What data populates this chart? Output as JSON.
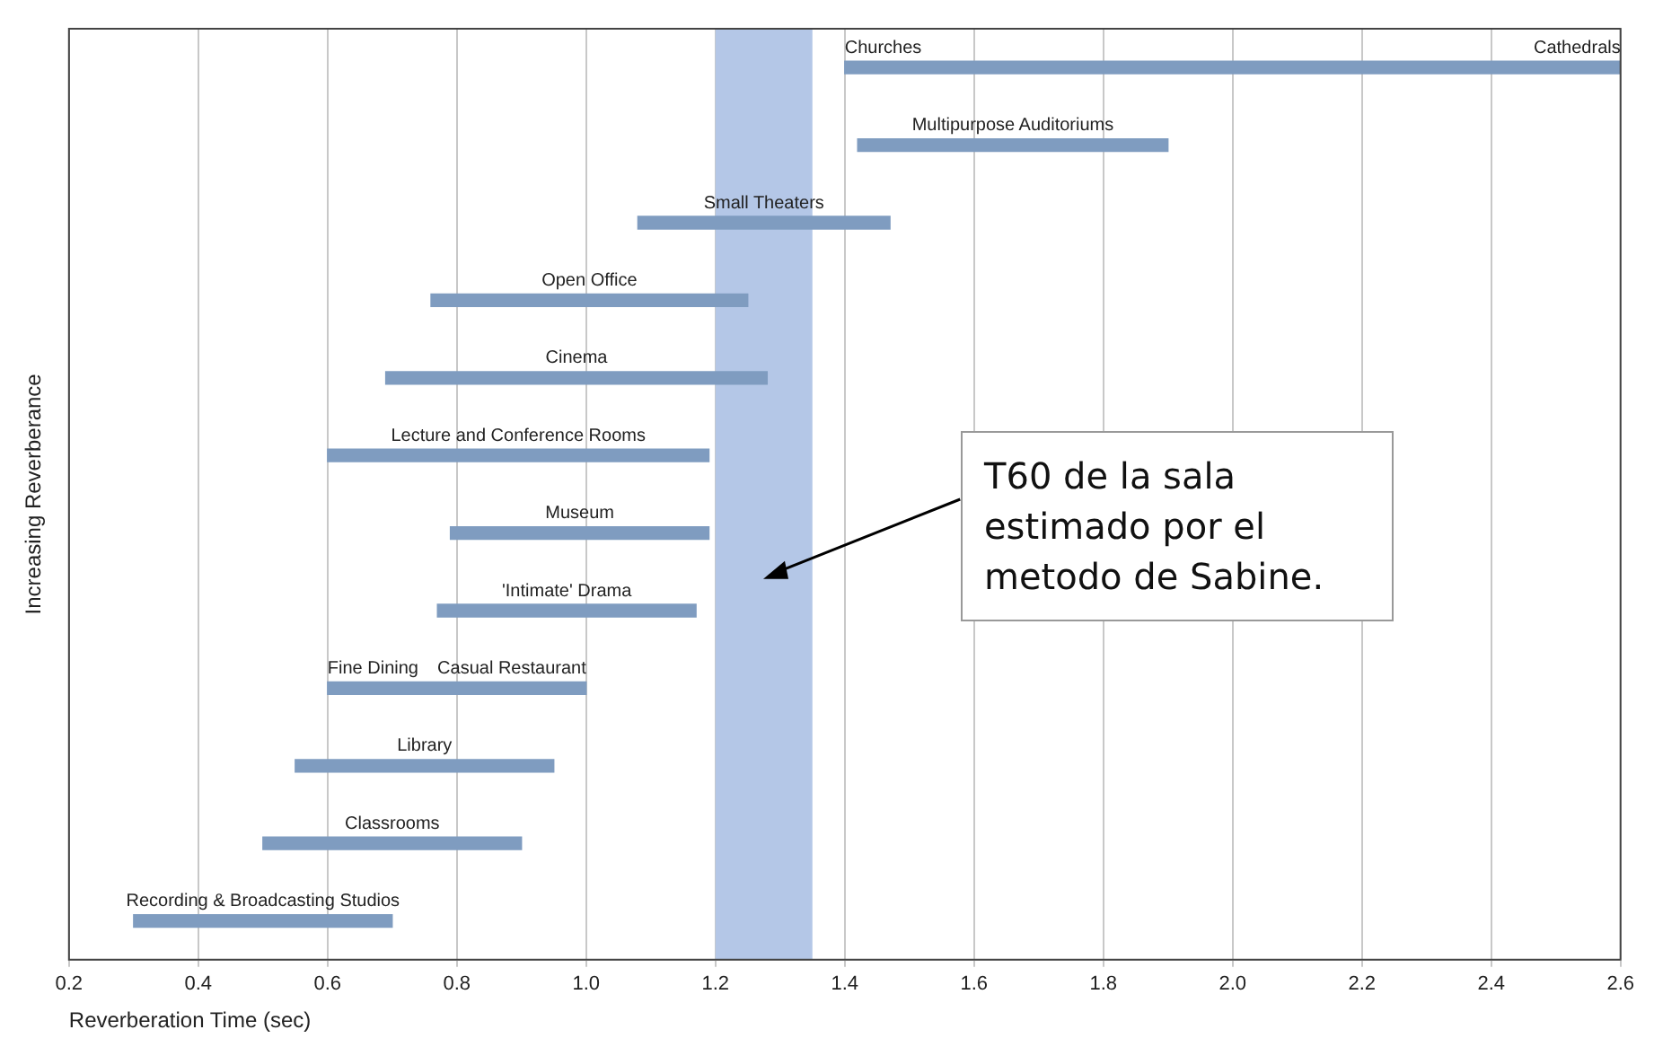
{
  "chart_data": {
    "type": "bar",
    "orientation": "horizontal",
    "xlabel": "Reverberation Time (sec)",
    "ylabel": "Increasing Reverberance",
    "categories": [
      "Churches",
      "Multipurpose Auditoriums",
      "Small Theaters",
      "Open Office",
      "Cinema",
      "Lecture and Conference Rooms",
      "Museum",
      "'Intimate' Drama",
      "Fine Dining",
      "Library",
      "Classrooms",
      "Recording & Broadcasting Studios"
    ],
    "base": [
      1.4,
      1.42,
      1.08,
      0.76,
      0.69,
      0.6,
      0.79,
      0.77,
      0.6,
      0.55,
      0.5,
      0.3
    ],
    "values": [
      1.2,
      0.48,
      0.39,
      0.49,
      0.59,
      0.59,
      0.4,
      0.4,
      0.4,
      0.4,
      0.4,
      0.4
    ],
    "color": "#7f9cc0",
    "xlim": [
      0.2,
      2.6
    ],
    "xticks": [
      0.2,
      0.4,
      0.6,
      0.8,
      {
        "value": 1,
        "label": "1.0"
      },
      1.2,
      1.4,
      1.6,
      1.8,
      {
        "value": 2,
        "label": "2.0"
      },
      2.2,
      2.4,
      2.6
    ],
    "grid": "x",
    "tick_labels": "x",
    "bands": [
      {
        "axis": "x",
        "from": 1.2,
        "to": 1.35,
        "label": "T60 de la sala estimado por el metodo de Sabine.",
        "color": "#b4c7e7"
      }
    ],
    "annotations": [
      {
        "text": "Cathedrals",
        "x": 2.6,
        "y": "Churches"
      },
      {
        "text": "Casual Restaurant",
        "x": 1.0,
        "y": "Fine Dining"
      }
    ]
  }
}
